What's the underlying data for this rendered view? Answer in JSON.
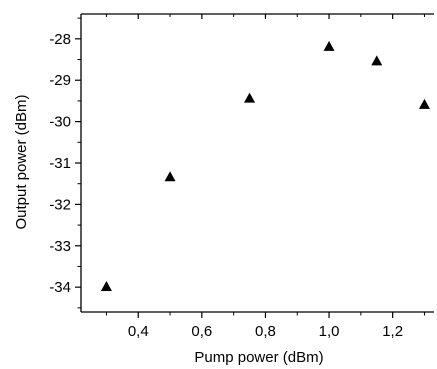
{
  "chart_data": {
    "type": "scatter",
    "title": "",
    "xlabel": "Pump power (dBm)",
    "ylabel": "Output power (dBm)",
    "xlim": [
      0.22,
      1.33
    ],
    "ylim": [
      -34.6,
      -27.4
    ],
    "x_ticks": [
      0.4,
      0.6,
      0.8,
      1.0,
      1.2
    ],
    "x_tick_labels": [
      "0,4",
      "0,6",
      "0,8",
      "1,0",
      "1,2"
    ],
    "y_ticks": [
      -28,
      -29,
      -30,
      -31,
      -32,
      -33,
      -34
    ],
    "y_tick_labels": [
      "-28",
      "-29",
      "-30",
      "-31",
      "-32",
      "-33",
      "-34"
    ],
    "grid": false,
    "marker": "filled-triangle",
    "marker_color": "#000000",
    "series": [
      {
        "x": [
          0.3,
          0.5,
          0.75,
          1.0,
          1.15,
          1.3
        ],
        "y": [
          -34.0,
          -31.35,
          -29.45,
          -28.2,
          -28.55,
          -29.6
        ]
      }
    ]
  }
}
